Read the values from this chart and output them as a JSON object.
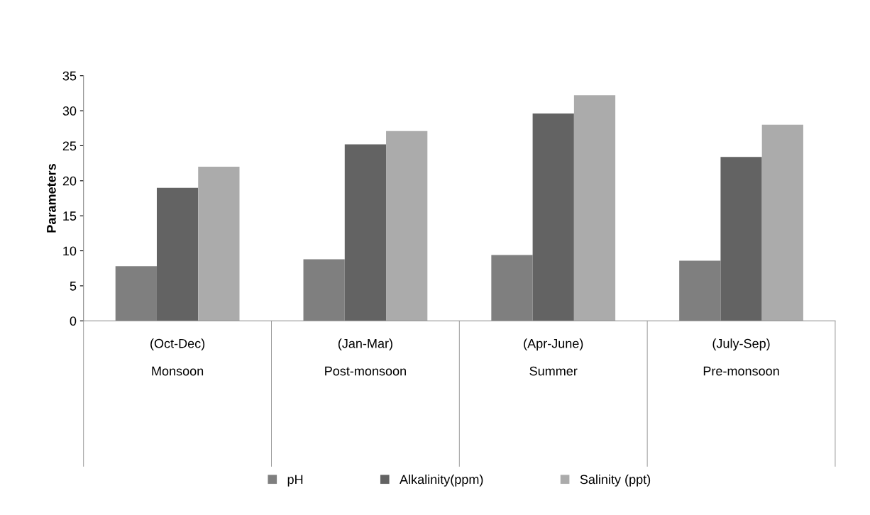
{
  "chart_data": {
    "type": "bar",
    "ylabel": "Parameters",
    "categories": [
      "(Oct-Dec)\n\nMonsoon",
      "(Jan-Mar)\n\nPost-monsoon",
      "(Apr-June)\n\nSummer",
      "(July-Sep)\n\nPre-monsoon"
    ],
    "series": [
      {
        "name": "pH",
        "color": "#7f7f7f",
        "values": [
          7.8,
          8.8,
          9.4,
          8.6
        ]
      },
      {
        "name": "Alkalinity(ppm)",
        "color": "#636363",
        "values": [
          19,
          25.2,
          29.6,
          23.4
        ]
      },
      {
        "name": "Salinity (ppt)",
        "color": "#ababab",
        "values": [
          22,
          27.1,
          32.2,
          28
        ]
      }
    ],
    "ylim": [
      0,
      35
    ],
    "yticks": [
      0,
      5,
      10,
      15,
      20,
      25,
      30,
      35
    ],
    "grid": false,
    "legend": "bottom"
  }
}
